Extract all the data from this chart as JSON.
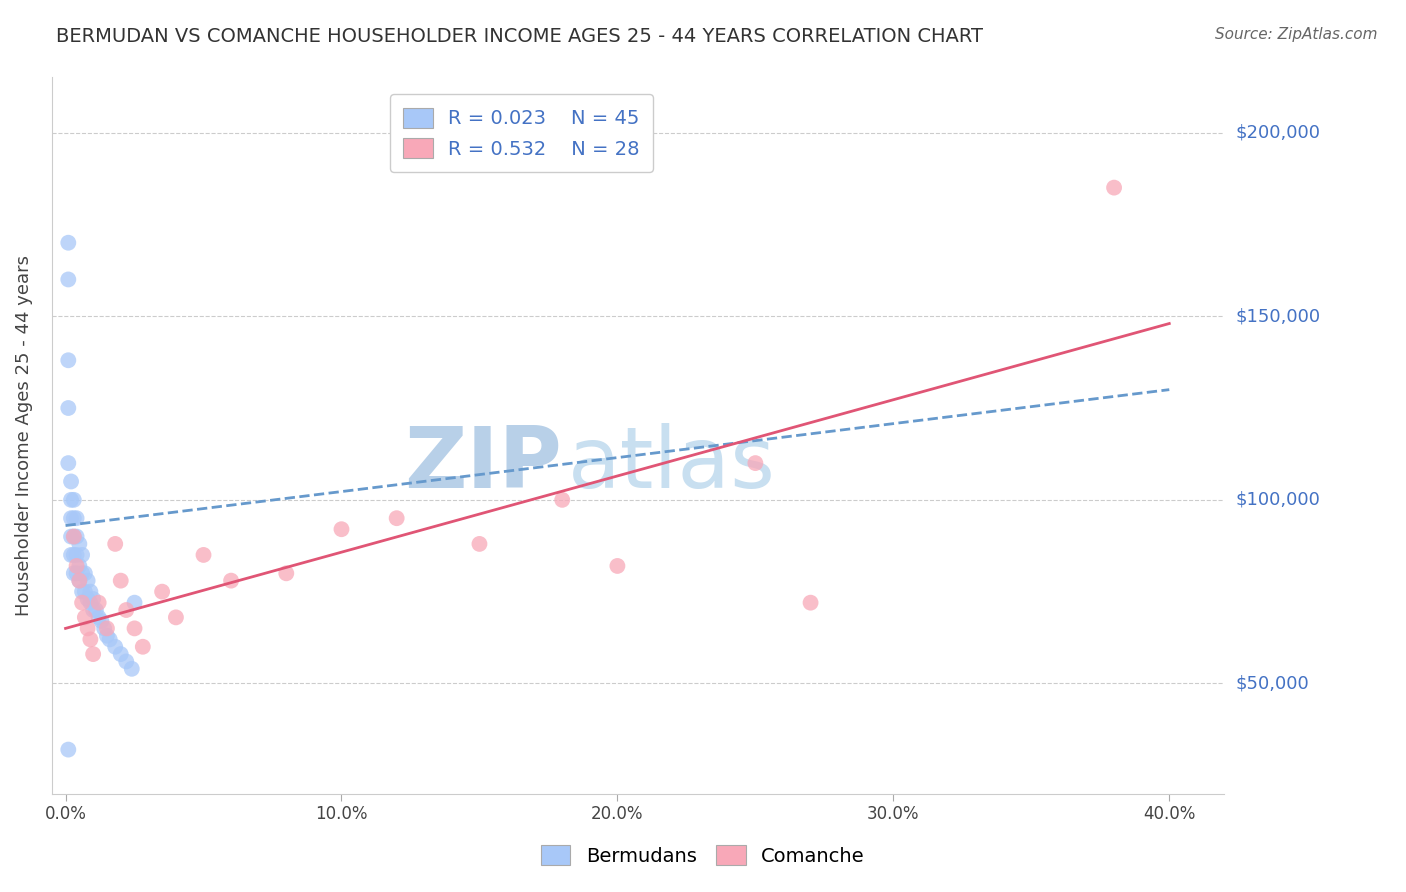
{
  "title": "BERMUDAN VS COMANCHE HOUSEHOLDER INCOME AGES 25 - 44 YEARS CORRELATION CHART",
  "source": "Source: ZipAtlas.com",
  "ylabel": "Householder Income Ages 25 - 44 years",
  "xlabel_ticks": [
    "0.0%",
    "10.0%",
    "20.0%",
    "30.0%",
    "40.0%"
  ],
  "xlabel_vals": [
    0.0,
    0.1,
    0.2,
    0.3,
    0.4
  ],
  "ytick_labels": [
    "$50,000",
    "$100,000",
    "$150,000",
    "$200,000"
  ],
  "ytick_vals": [
    50000,
    100000,
    150000,
    200000
  ],
  "ylim": [
    20000,
    215000
  ],
  "xlim": [
    -0.005,
    0.42
  ],
  "bermuda_R": "R = 0.023",
  "bermuda_N": "N = 45",
  "comanche_R": "R = 0.532",
  "comanche_N": "N = 28",
  "bermuda_color": "#a8c8f8",
  "comanche_color": "#f8a8b8",
  "bermuda_line_color": "#6699cc",
  "comanche_line_color": "#e05575",
  "watermark_zip": "ZIP",
  "watermark_atlas": "atlas",
  "watermark_color": "#c8dff0",
  "bermuda_x": [
    0.001,
    0.001,
    0.001,
    0.001,
    0.001,
    0.002,
    0.002,
    0.002,
    0.002,
    0.002,
    0.003,
    0.003,
    0.003,
    0.003,
    0.003,
    0.004,
    0.004,
    0.004,
    0.004,
    0.005,
    0.005,
    0.005,
    0.006,
    0.006,
    0.006,
    0.007,
    0.007,
    0.008,
    0.008,
    0.009,
    0.009,
    0.01,
    0.01,
    0.011,
    0.012,
    0.013,
    0.014,
    0.015,
    0.016,
    0.018,
    0.02,
    0.022,
    0.024,
    0.025,
    0.001
  ],
  "bermuda_y": [
    170000,
    160000,
    138000,
    125000,
    110000,
    105000,
    100000,
    95000,
    90000,
    85000,
    100000,
    95000,
    90000,
    85000,
    80000,
    95000,
    90000,
    85000,
    80000,
    88000,
    82000,
    78000,
    85000,
    80000,
    75000,
    80000,
    75000,
    78000,
    73000,
    75000,
    72000,
    73000,
    70000,
    70000,
    68000,
    67000,
    65000,
    63000,
    62000,
    60000,
    58000,
    56000,
    54000,
    72000,
    32000
  ],
  "comanche_x": [
    0.003,
    0.004,
    0.005,
    0.006,
    0.007,
    0.008,
    0.009,
    0.01,
    0.012,
    0.015,
    0.018,
    0.02,
    0.022,
    0.025,
    0.028,
    0.035,
    0.04,
    0.05,
    0.06,
    0.08,
    0.1,
    0.12,
    0.15,
    0.18,
    0.2,
    0.25,
    0.27,
    0.38
  ],
  "comanche_y": [
    90000,
    82000,
    78000,
    72000,
    68000,
    65000,
    62000,
    58000,
    72000,
    65000,
    88000,
    78000,
    70000,
    65000,
    60000,
    75000,
    68000,
    85000,
    78000,
    80000,
    92000,
    95000,
    88000,
    100000,
    82000,
    110000,
    72000,
    185000
  ],
  "bermuda_line_x": [
    0.0,
    0.4
  ],
  "bermuda_line_y": [
    93000,
    130000
  ],
  "comanche_line_x": [
    0.0,
    0.4
  ],
  "comanche_line_y": [
    65000,
    148000
  ]
}
